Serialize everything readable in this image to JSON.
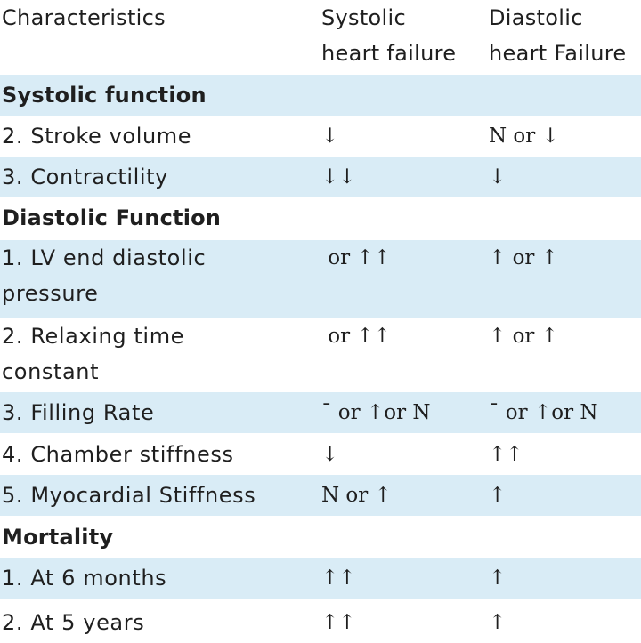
{
  "table": {
    "headers": {
      "characteristics": "Characteristics",
      "systolic": [
        "Systolic",
        "heart failure"
      ],
      "diastolic": [
        "Diastolic",
        "heart Failure"
      ]
    },
    "rows": [
      {
        "type": "section",
        "label": "Systolic function"
      },
      {
        "type": "data",
        "label": [
          "2. Stroke volume"
        ],
        "systolic": "↓",
        "diastolic": "N or ↓"
      },
      {
        "type": "data",
        "label": [
          "3. Contractility"
        ],
        "systolic": "↓↓",
        "diastolic": "↓"
      },
      {
        "type": "section",
        "label": "Diastolic Function"
      },
      {
        "type": "data",
        "label": [
          "1. LV end diastolic",
          "pressure"
        ],
        "systolic": " or ↑↑",
        "diastolic": "↑ or ↑"
      },
      {
        "type": "data",
        "label": [
          "2. Relaxing time",
          "constant"
        ],
        "systolic": " or ↑↑",
        "diastolic": "↑ or ↑"
      },
      {
        "type": "data",
        "label": [
          "3. Filling Rate"
        ],
        "systolic": "¯ or ↑or N",
        "diastolic": "¯ or ↑or N"
      },
      {
        "type": "data",
        "label": [
          "4. Chamber stiffness"
        ],
        "systolic": "↓",
        "diastolic": "↑↑"
      },
      {
        "type": "data",
        "label": [
          "5. Myocardial Stiffness"
        ],
        "systolic": "N or ↑",
        "diastolic": "↑"
      },
      {
        "type": "section",
        "label": "Mortality"
      },
      {
        "type": "data",
        "label": [
          "1. At 6 months"
        ],
        "systolic": "↑↑",
        "diastolic": "↑"
      },
      {
        "type": "data",
        "label": [
          "2. At 5 years"
        ],
        "systolic": "↑↑",
        "diastolic": "↑"
      }
    ]
  }
}
